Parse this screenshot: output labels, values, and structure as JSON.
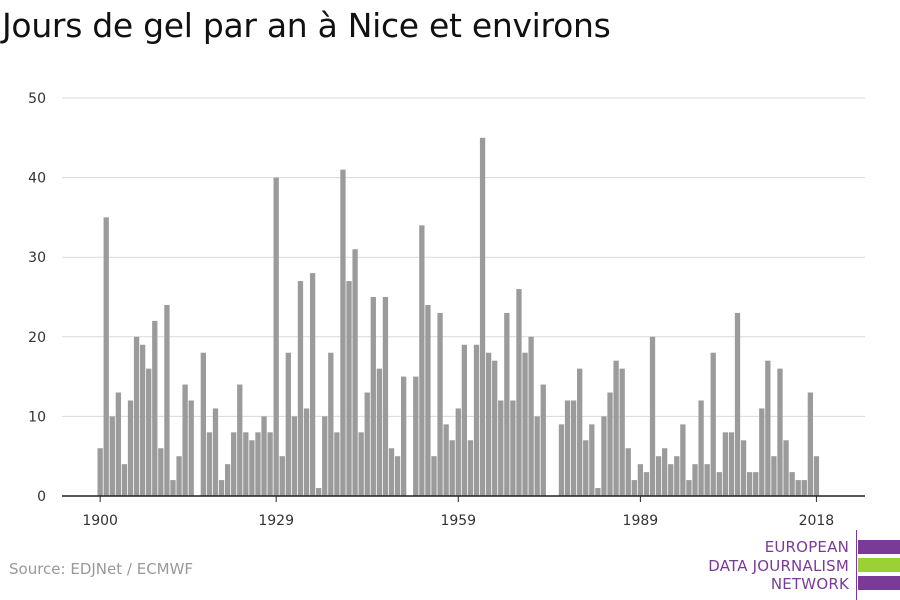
{
  "title": "Jours de gel par an à Nice et environs",
  "source": "Source: EDJNet / ECMWF",
  "logo": {
    "lines": [
      "EUROPEAN",
      "DATA JOURNALISM",
      "NETWORK"
    ],
    "colors": {
      "text": "#7a3b97",
      "bar_purple": "#7a3b97",
      "bar_green": "#9ad134"
    }
  },
  "colors": {
    "bar": "#9b9b9b",
    "grid": "#d9d9d9",
    "axis": "#222222"
  },
  "chart_data": {
    "type": "bar",
    "title": "Jours de gel par an à Nice et environs",
    "xlabel": "",
    "ylabel": "",
    "ylim": [
      0,
      50
    ],
    "yticks": [
      0,
      10,
      20,
      30,
      40,
      50
    ],
    "xticks": [
      1900,
      1929,
      1959,
      1989,
      2018
    ],
    "grid": true,
    "x": [
      1900,
      1901,
      1902,
      1903,
      1904,
      1905,
      1906,
      1907,
      1908,
      1909,
      1910,
      1911,
      1912,
      1913,
      1914,
      1915,
      1916,
      1917,
      1918,
      1919,
      1920,
      1921,
      1922,
      1923,
      1924,
      1925,
      1926,
      1927,
      1928,
      1929,
      1930,
      1931,
      1932,
      1933,
      1934,
      1935,
      1936,
      1937,
      1938,
      1939,
      1940,
      1941,
      1942,
      1943,
      1944,
      1945,
      1946,
      1947,
      1948,
      1949,
      1950,
      1951,
      1952,
      1953,
      1954,
      1955,
      1956,
      1957,
      1958,
      1959,
      1960,
      1961,
      1962,
      1963,
      1964,
      1965,
      1966,
      1967,
      1968,
      1969,
      1970,
      1971,
      1972,
      1973,
      1974,
      1975,
      1976,
      1977,
      1978,
      1979,
      1980,
      1981,
      1982,
      1983,
      1984,
      1985,
      1986,
      1987,
      1988,
      1989,
      1990,
      1991,
      1992,
      1993,
      1994,
      1995,
      1996,
      1997,
      1998,
      1999,
      2000,
      2001,
      2002,
      2003,
      2004,
      2005,
      2006,
      2007,
      2008,
      2009,
      2010,
      2011,
      2012,
      2013,
      2014,
      2015,
      2016,
      2017,
      2018,
      2019
    ],
    "values": [
      6,
      35,
      10,
      13,
      4,
      12,
      20,
      19,
      16,
      22,
      6,
      24,
      2,
      5,
      14,
      12,
      0,
      18,
      8,
      11,
      2,
      4,
      8,
      14,
      8,
      7,
      8,
      10,
      8,
      40,
      5,
      18,
      10,
      27,
      11,
      28,
      1,
      10,
      18,
      8,
      41,
      27,
      31,
      8,
      13,
      25,
      16,
      25,
      6,
      5,
      15,
      0,
      15,
      34,
      24,
      5,
      23,
      9,
      7,
      11,
      19,
      7,
      19,
      45,
      18,
      17,
      12,
      23,
      12,
      26,
      18,
      20,
      10,
      14,
      0,
      0,
      9,
      12,
      12,
      16,
      7,
      9,
      1,
      10,
      13,
      17,
      16,
      6,
      2,
      4,
      3,
      20,
      5,
      6,
      4,
      5,
      9,
      2,
      4,
      12,
      4,
      18,
      3,
      8,
      8,
      23,
      7,
      3,
      3,
      11,
      17,
      5,
      16,
      7,
      3,
      2,
      2,
      13,
      5,
      0
    ]
  }
}
